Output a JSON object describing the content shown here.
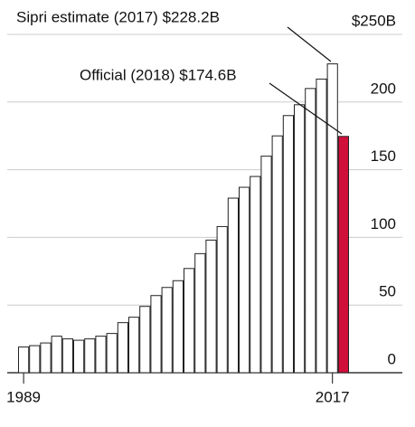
{
  "chart_data": {
    "type": "bar",
    "annotations": [
      "Sipri estimate (2017) $228.2B",
      "Official (2018) $174.6B"
    ],
    "categories": [
      "1989",
      null,
      null,
      null,
      null,
      null,
      null,
      null,
      null,
      null,
      null,
      null,
      null,
      null,
      null,
      null,
      null,
      null,
      null,
      null,
      null,
      null,
      null,
      null,
      null,
      null,
      null,
      null,
      "2017",
      null
    ],
    "series": [
      {
        "color": "#ffffff",
        "values": [
          19,
          20,
          22,
          27,
          25,
          24,
          25,
          27,
          29,
          37,
          41,
          49,
          57,
          63,
          68,
          77,
          88,
          98,
          108,
          129,
          137,
          145,
          160,
          175,
          190,
          198,
          210,
          217,
          228.2,
          null
        ]
      },
      {
        "color": "#d0103a",
        "values": [
          null,
          null,
          null,
          null,
          null,
          null,
          null,
          null,
          null,
          null,
          null,
          null,
          null,
          null,
          null,
          null,
          null,
          null,
          null,
          null,
          null,
          null,
          null,
          null,
          null,
          null,
          null,
          null,
          null,
          174.6
        ]
      }
    ],
    "ylim": [
      0,
      250
    ],
    "yticks": [
      0,
      50,
      100,
      150,
      200,
      {
        "value": 250,
        "label": "$250B"
      }
    ],
    "grid": true
  }
}
